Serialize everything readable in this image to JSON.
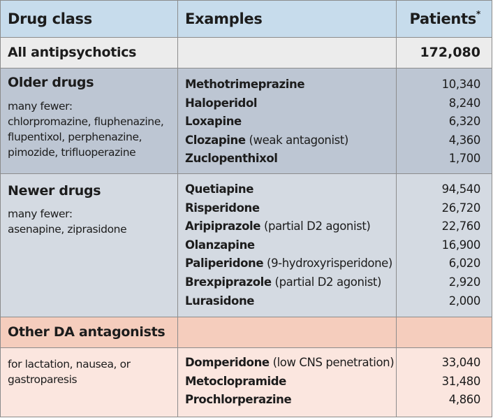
{
  "colors": {
    "header_bg": "#c7dcec",
    "all_row_bg": "#ececec",
    "older_bg": "#bdc6d3",
    "newer_bg": "#d4dae2",
    "other_title_bg": "#f5cdbd",
    "other_body_bg": "#fbe6df",
    "border": "#8c8c8c"
  },
  "header": {
    "col1": "Drug class",
    "col2": "Examples",
    "col3": "Patients",
    "col3_mark": "*"
  },
  "all": {
    "label": "All antipsychotics",
    "examples": "",
    "total": "172,080"
  },
  "older": {
    "title": "Older drugs",
    "note": [
      "many fewer:",
      "chlorpromazine, fluphenazine,",
      "flupentixol, perphenazine,",
      "pimozide, trifluoperazine"
    ],
    "examples": [
      {
        "name": "Methotrimeprazine",
        "note": "",
        "patients": "10,340"
      },
      {
        "name": "Haloperidol",
        "note": "",
        "patients": "8,240"
      },
      {
        "name": "Loxapine",
        "note": "",
        "patients": "6,320"
      },
      {
        "name": "Clozapine",
        "note": "(weak antagonist)",
        "patients": "4,360"
      },
      {
        "name": "Zuclopenthixol",
        "note": "",
        "patients": "1,700"
      }
    ]
  },
  "newer": {
    "title": "Newer drugs",
    "note": [
      "many fewer:",
      "asenapine, ziprasidone"
    ],
    "examples": [
      {
        "name": "Quetiapine",
        "note": "",
        "patients": "94,540"
      },
      {
        "name": "Risperidone",
        "note": "",
        "patients": "26,720"
      },
      {
        "name": "Aripiprazole",
        "note": "(partial D2 agonist)",
        "patients": "22,760"
      },
      {
        "name": "Olanzapine",
        "note": "",
        "patients": "16,900"
      },
      {
        "name": "Paliperidone",
        "note": "(9-hydroxyrisperidone)",
        "patients": "6,020"
      },
      {
        "name": "Brexpiprazole",
        "note": "(partial D2 agonist)",
        "patients": "2,920"
      },
      {
        "name": "Lurasidone",
        "note": "",
        "patients": "2,000"
      }
    ]
  },
  "other": {
    "title": "Other DA antagonists",
    "note": [
      "for lactation, nausea, or",
      "gastroparesis"
    ],
    "examples": [
      {
        "name": "Domperidone",
        "note": "(low CNS penetration)",
        "patients": "33,040"
      },
      {
        "name": "Metoclopramide",
        "note": "",
        "patients": "31,480"
      },
      {
        "name": "Prochlorperazine",
        "note": "",
        "patients": "4,860"
      }
    ]
  }
}
